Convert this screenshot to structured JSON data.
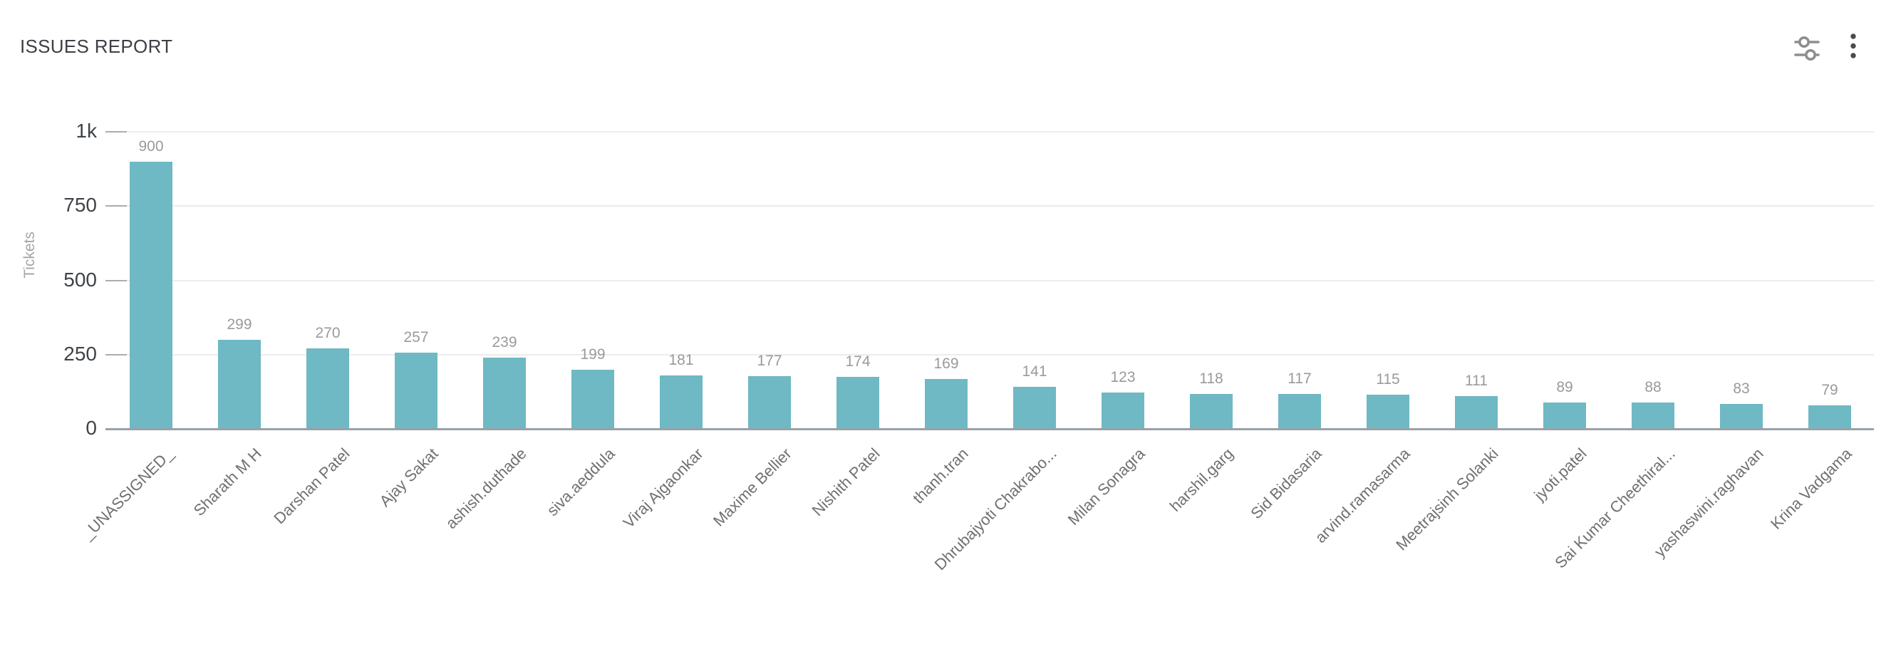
{
  "header": {
    "title": "ISSUES REPORT",
    "actions": [
      {
        "icon": "tune-icon",
        "label": "chart filters"
      },
      {
        "icon": "kebab-menu-icon",
        "label": "more options"
      }
    ]
  },
  "chart_data": {
    "type": "bar",
    "title": "ISSUES REPORT",
    "xlabel": "",
    "ylabel": "Tickets",
    "ylim": [
      0,
      1000
    ],
    "grid": true,
    "legend_position": "none",
    "bar_color": "#6EB9C3",
    "categories": [
      "_UNASSIGNED_",
      "Sharath M H",
      "Darshan Patel",
      "Ajay Sakat",
      "ashish.duthade",
      "siva.aeddula",
      "Viraj Ajgaonkar",
      "Maxime Bellier",
      "Nishith Patel",
      "thanh.tran",
      "Dhrubajyoti Chakrabo...",
      "Milan Sonagra",
      "harshil.garg",
      "Sid Bidasaria",
      "arvind.ramasarma",
      "Meetrajsinh Solanki",
      "jyoti.patel",
      "Sai Kumar Cheethiral...",
      "yashaswini.raghavan",
      "Krina Vadgama"
    ],
    "values": [
      900,
      299,
      270,
      257,
      239,
      199,
      181,
      177,
      174,
      169,
      141,
      123,
      118,
      117,
      115,
      111,
      89,
      88,
      83,
      79
    ],
    "yticks": [
      {
        "value": 0,
        "label": "0"
      },
      {
        "value": 250,
        "label": "250"
      },
      {
        "value": 500,
        "label": "500"
      },
      {
        "value": 750,
        "label": "750"
      },
      {
        "value": 1000,
        "label": "1k"
      }
    ],
    "colors": {
      "bar": "#6EB9C3",
      "grid_line": "#ececec",
      "axis_line": "#9aa1a8",
      "y_tick_label": "#3f4347",
      "value_label": "#9a9a9a",
      "category_label": "#707070",
      "axis_name": "#a6a6a6",
      "icon_gray": "#8e8e8e",
      "kebab_gray": "#4c4c4c"
    }
  }
}
